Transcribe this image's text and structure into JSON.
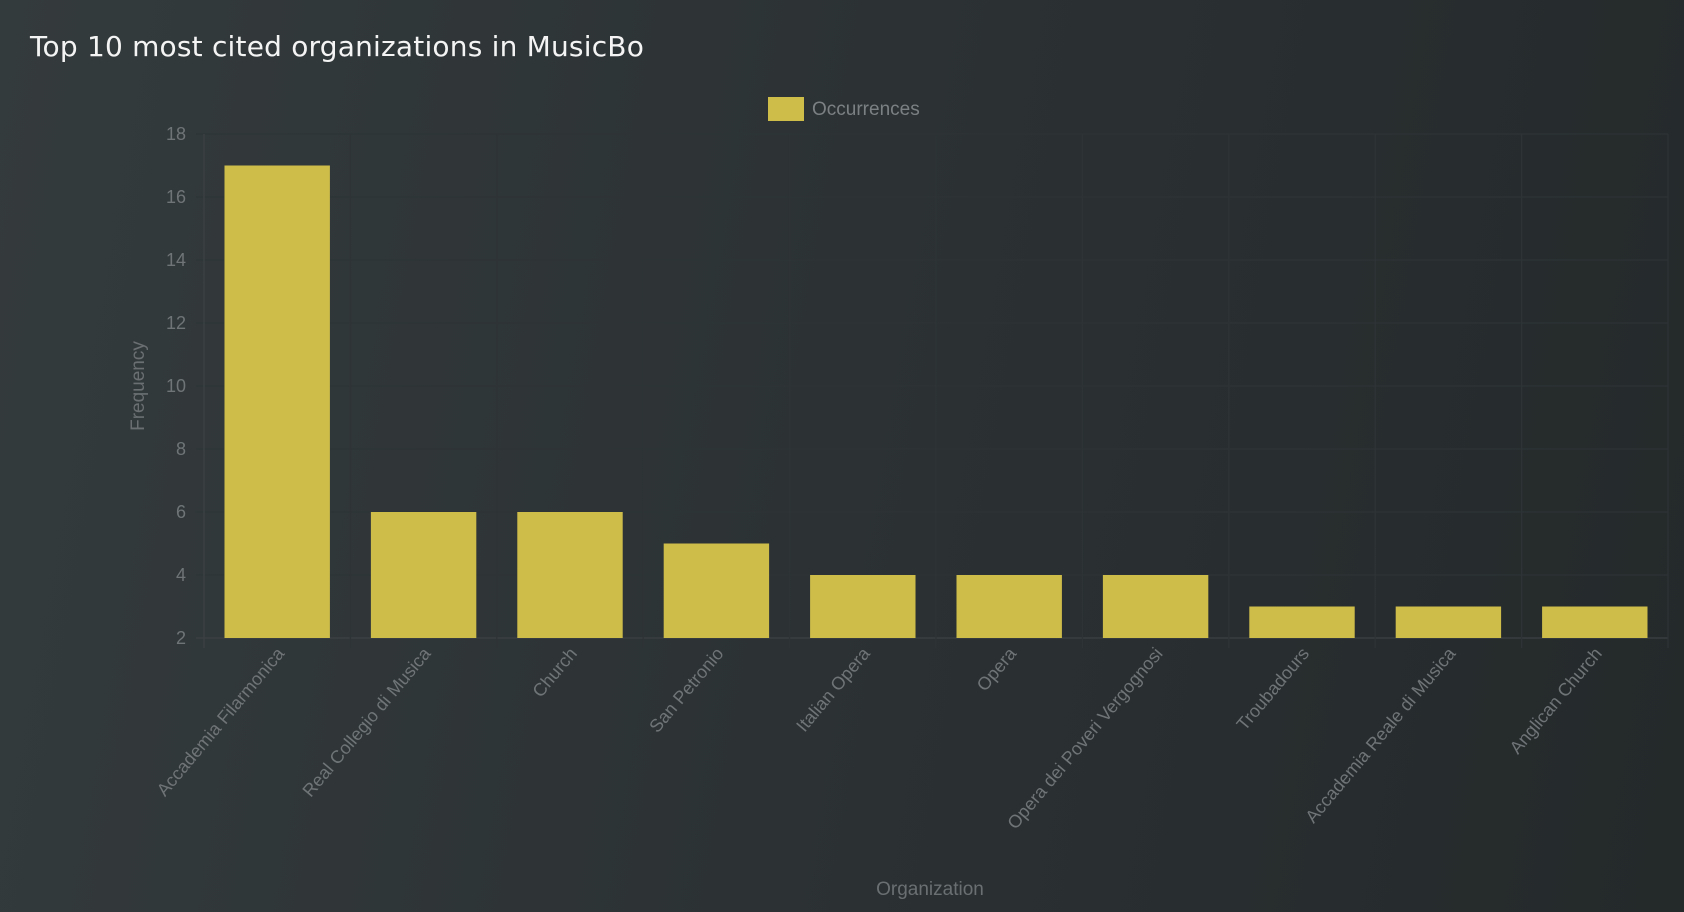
{
  "title": "Top 10 most cited organizations in MusicBo",
  "chart_data": {
    "type": "bar",
    "categories": [
      "Accademia Filarmonica",
      "Real Collegio di Musica",
      "Church",
      "San Petronio",
      "Italian Opera",
      "Opera",
      "Opera dei Poveri Vergognosi",
      "Troubadours",
      "Accademia Reale di Musica",
      "Anglican Church"
    ],
    "series": [
      {
        "name": "Occurrences",
        "values": [
          17,
          6,
          6,
          5,
          4,
          4,
          4,
          3,
          3,
          3
        ]
      }
    ],
    "xlabel": "Organization",
    "ylabel": "Frequency",
    "ylim": [
      2,
      18
    ],
    "yticks": [
      2,
      4,
      6,
      8,
      10,
      12,
      14,
      16,
      18
    ],
    "grid": true,
    "legend_position": "top-center",
    "bar_color": "#cfbd4a"
  }
}
